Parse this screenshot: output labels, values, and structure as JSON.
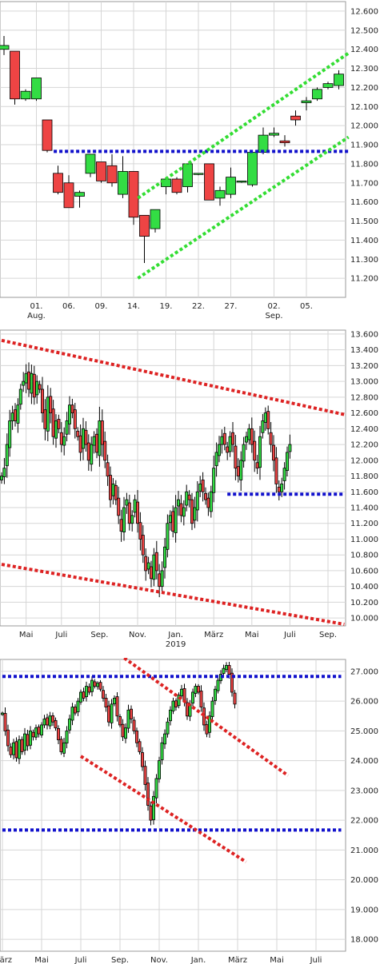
{
  "colors": {
    "up": "#33dd44",
    "down": "#ee4444",
    "grid": "#d6d6d6",
    "green_trend": "#33dd33",
    "blue_line": "#1111cc",
    "red_trend": "#dd2222"
  },
  "chart_data": [
    {
      "type": "candlestick",
      "title": "",
      "y_ticks": [
        "12.600",
        "12.500",
        "12.400",
        "12.300",
        "12.200",
        "12.100",
        "12.000",
        "11.900",
        "11.800",
        "11.700",
        "11.600",
        "11.500",
        "11.400",
        "11.300",
        "11.200"
      ],
      "ylim": [
        11.1,
        12.65
      ],
      "x_labels": [
        {
          "i": 3,
          "text": "01."
        },
        {
          "i": 6,
          "text": "06."
        },
        {
          "i": 9,
          "text": "09."
        },
        {
          "i": 12,
          "text": "14."
        },
        {
          "i": 15,
          "text": "19."
        },
        {
          "i": 18,
          "text": "22."
        },
        {
          "i": 21,
          "text": "27."
        },
        {
          "i": 25,
          "text": "02."
        },
        {
          "i": 28,
          "text": "05."
        }
      ],
      "x_sublabels": [
        {
          "i": 3,
          "text": "Aug."
        },
        {
          "i": 25,
          "text": "Sep."
        }
      ],
      "candles": [
        {
          "o": 12.4,
          "h": 12.47,
          "l": 12.37,
          "c": 12.42
        },
        {
          "o": 12.39,
          "h": 12.39,
          "l": 12.11,
          "c": 12.14
        },
        {
          "o": 12.14,
          "h": 12.19,
          "l": 12.13,
          "c": 12.18
        },
        {
          "o": 12.14,
          "h": 12.25,
          "l": 12.13,
          "c": 12.25
        },
        {
          "o": 12.03,
          "h": 12.03,
          "l": 11.86,
          "c": 11.87
        },
        {
          "o": 11.75,
          "h": 11.79,
          "l": 11.64,
          "c": 11.65
        },
        {
          "o": 11.7,
          "h": 11.74,
          "l": 11.57,
          "c": 11.57
        },
        {
          "o": 11.63,
          "h": 11.66,
          "l": 11.57,
          "c": 11.65
        },
        {
          "o": 11.75,
          "h": 11.85,
          "l": 11.73,
          "c": 11.85
        },
        {
          "o": 11.81,
          "h": 11.81,
          "l": 11.7,
          "c": 11.71
        },
        {
          "o": 11.79,
          "h": 11.85,
          "l": 11.68,
          "c": 11.7
        },
        {
          "o": 11.64,
          "h": 11.84,
          "l": 11.62,
          "c": 11.76
        },
        {
          "o": 11.76,
          "h": 11.76,
          "l": 11.48,
          "c": 11.52
        },
        {
          "o": 11.53,
          "h": 11.53,
          "l": 11.28,
          "c": 11.42
        },
        {
          "o": 11.46,
          "h": 11.56,
          "l": 11.44,
          "c": 11.56
        },
        {
          "o": 11.68,
          "h": 11.72,
          "l": 11.64,
          "c": 11.72
        },
        {
          "o": 11.72,
          "h": 11.73,
          "l": 11.64,
          "c": 11.65
        },
        {
          "o": 11.68,
          "h": 11.8,
          "l": 11.65,
          "c": 11.8
        },
        {
          "o": 11.75,
          "h": 11.75,
          "l": 11.74,
          "c": 11.75
        },
        {
          "o": 11.8,
          "h": 11.8,
          "l": 11.61,
          "c": 11.61
        },
        {
          "o": 11.62,
          "h": 11.68,
          "l": 11.58,
          "c": 11.66
        },
        {
          "o": 11.64,
          "h": 11.78,
          "l": 11.62,
          "c": 11.73
        },
        {
          "o": 11.71,
          "h": 11.71,
          "l": 11.7,
          "c": 11.71
        },
        {
          "o": 11.69,
          "h": 11.87,
          "l": 11.68,
          "c": 11.86
        },
        {
          "o": 11.86,
          "h": 11.99,
          "l": 11.85,
          "c": 11.95
        },
        {
          "o": 11.95,
          "h": 11.99,
          "l": 11.94,
          "c": 11.96
        },
        {
          "o": 11.92,
          "h": 11.95,
          "l": 11.89,
          "c": 11.91
        },
        {
          "o": 12.05,
          "h": 12.08,
          "l": 12.0,
          "c": 12.03
        },
        {
          "o": 12.12,
          "h": 12.15,
          "l": 12.08,
          "c": 12.13
        },
        {
          "o": 12.14,
          "h": 12.2,
          "l": 12.13,
          "c": 12.19
        },
        {
          "o": 12.2,
          "h": 12.23,
          "l": 12.19,
          "c": 12.22
        },
        {
          "o": 12.21,
          "h": 12.29,
          "l": 12.19,
          "c": 12.27
        }
      ],
      "lines": [
        {
          "kind": "horizontal",
          "color": "blue",
          "x0": 4.6,
          "x1": 31.9,
          "y": 11.865
        },
        {
          "kind": "trend",
          "color": "green",
          "x0": 12.4,
          "y0": 11.62,
          "x1": 31.9,
          "y1": 12.38
        },
        {
          "kind": "trend",
          "color": "green",
          "x0": 12.4,
          "y0": 11.2,
          "x1": 31.9,
          "y1": 11.94
        }
      ]
    },
    {
      "type": "candlestick",
      "title": "",
      "y_ticks": [
        "13.600",
        "13.400",
        "13.200",
        "13.000",
        "12.800",
        "12.600",
        "12.400",
        "12.200",
        "12.000",
        "11.800",
        "11.600",
        "11.400",
        "11.200",
        "11.000",
        "10.800",
        "10.600",
        "10.400",
        "10.200",
        "10.000"
      ],
      "ylim": [
        9.9,
        13.65
      ],
      "x_labels": [
        {
          "i": 9,
          "text": "Mai"
        },
        {
          "i": 22,
          "text": "Juli"
        },
        {
          "i": 36,
          "text": "Sep."
        },
        {
          "i": 50,
          "text": "Nov."
        },
        {
          "i": 64,
          "text": "Jan."
        },
        {
          "i": 78,
          "text": "März"
        },
        {
          "i": 92,
          "text": "Mai"
        },
        {
          "i": 106,
          "text": "Juli"
        },
        {
          "i": 120,
          "text": "Sep."
        }
      ],
      "x_sublabels": [
        {
          "i": 64,
          "text": "2019"
        }
      ],
      "closes": [
        11.8,
        11.9,
        12.2,
        12.5,
        12.6,
        12.5,
        12.7,
        12.9,
        13.0,
        13.1,
        12.9,
        13.1,
        12.8,
        13.0,
        12.9,
        12.6,
        12.4,
        12.8,
        12.6,
        12.3,
        12.5,
        12.4,
        12.2,
        12.3,
        12.5,
        12.7,
        12.6,
        12.4,
        12.3,
        12.1,
        12.4,
        12.2,
        12.0,
        12.2,
        12.3,
        12.1,
        12.5,
        12.2,
        12.0,
        11.8,
        11.5,
        11.7,
        11.5,
        11.3,
        11.1,
        11.4,
        11.5,
        11.2,
        11.3,
        11.5,
        11.2,
        11.0,
        10.8,
        10.6,
        10.7,
        10.5,
        10.8,
        10.6,
        10.4,
        10.6,
        10.9,
        11.2,
        11.3,
        11.1,
        11.4,
        11.5,
        11.3,
        11.4,
        11.6,
        11.5,
        11.2,
        11.4,
        11.6,
        11.7,
        11.6,
        11.5,
        11.4,
        11.6,
        11.9,
        12.1,
        12.2,
        12.3,
        12.2,
        12.1,
        12.3,
        12.2,
        11.9,
        11.8,
        12.0,
        12.2,
        12.3,
        12.4,
        12.2,
        12.0,
        11.9,
        12.3,
        12.5,
        12.6,
        12.4,
        12.2,
        12.0,
        11.7,
        11.6,
        11.7,
        11.9,
        12.1,
        12.2
      ],
      "lines": [
        {
          "kind": "horizontal",
          "color": "blue",
          "x0": 83,
          "x1": 126,
          "y": 11.57
        },
        {
          "kind": "trend",
          "color": "red",
          "x0": 0,
          "y0": 13.52,
          "x1": 126,
          "y1": 12.58
        },
        {
          "kind": "trend",
          "color": "red",
          "x0": 0,
          "y0": 10.68,
          "x1": 126,
          "y1": 9.92
        }
      ]
    },
    {
      "type": "candlestick",
      "title": "",
      "y_ticks": [
        "27.000",
        "26.000",
        "25.000",
        "24.000",
        "23.000",
        "22.000",
        "21.000",
        "20.000",
        "19.000",
        "18.000"
      ],
      "ylim": [
        17.6,
        27.4
      ],
      "x_labels": [
        {
          "i": 0,
          "text": "März"
        },
        {
          "i": 14,
          "text": "Mai"
        },
        {
          "i": 28,
          "text": "Juli"
        },
        {
          "i": 42,
          "text": "Sep."
        },
        {
          "i": 56,
          "text": "Nov."
        },
        {
          "i": 70,
          "text": "Jan."
        },
        {
          "i": 84,
          "text": "März"
        },
        {
          "i": 98,
          "text": "Mai"
        },
        {
          "i": 112,
          "text": "Juli"
        }
      ],
      "x_sublabels": [],
      "closes": [
        25.6,
        25.0,
        24.5,
        24.2,
        24.6,
        24.1,
        24.7,
        24.3,
        24.9,
        24.5,
        25.0,
        24.8,
        25.1,
        24.9,
        25.2,
        25.4,
        25.2,
        25.5,
        25.3,
        25.1,
        24.7,
        24.3,
        24.6,
        25.0,
        25.4,
        25.8,
        25.6,
        26.0,
        26.3,
        26.1,
        26.5,
        26.3,
        26.7,
        26.5,
        26.6,
        26.4,
        26.1,
        25.8,
        25.3,
        25.9,
        26.1,
        25.5,
        25.2,
        24.8,
        25.1,
        25.7,
        25.4,
        25.0,
        24.6,
        24.3,
        23.8,
        23.2,
        22.5,
        22.0,
        22.8,
        23.4,
        24.0,
        24.6,
        24.9,
        25.3,
        25.7,
        26.0,
        25.8,
        26.2,
        26.4,
        26.0,
        25.5,
        25.9,
        26.3,
        26.5,
        26.3,
        25.8,
        25.2,
        24.9,
        25.5,
        26.0,
        26.4,
        26.7,
        26.9,
        27.1,
        27.2,
        26.9,
        26.3,
        25.9
      ],
      "lines": [
        {
          "kind": "horizontal",
          "color": "blue",
          "x0": 0,
          "x1": 121,
          "y": 26.83
        },
        {
          "kind": "horizontal",
          "color": "blue",
          "x0": 0,
          "x1": 121,
          "y": 21.67
        },
        {
          "kind": "trend",
          "color": "red",
          "x0": 43.5,
          "y0": 27.45,
          "x1": 102,
          "y1": 23.5
        },
        {
          "kind": "trend",
          "color": "red",
          "x0": 28,
          "y0": 24.15,
          "x1": 87,
          "y1": 20.6
        }
      ]
    }
  ]
}
